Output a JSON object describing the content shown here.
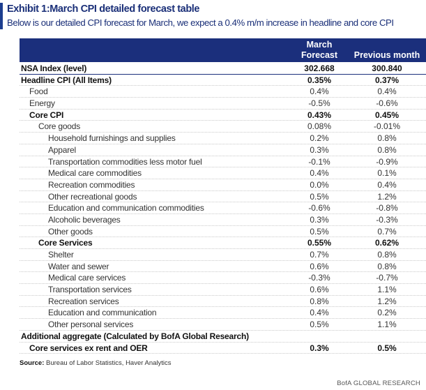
{
  "title": "Exhibit 1:March CPI detailed forecast table",
  "subtitle": "Below is our detailed CPI forecast for March, we expect a 0.4% m/m increase in headline and core CPI",
  "columns": {
    "march_line1": "March",
    "march_line2": "Forecast",
    "previous": "Previous month"
  },
  "rows": [
    {
      "label": "NSA Index (level)",
      "march": "302.668",
      "prev": "300.840",
      "level": 0,
      "bold": true
    },
    {
      "label": "Headline CPI (All Items)",
      "march": "0.35%",
      "prev": "0.37%",
      "level": 0,
      "bold": true
    },
    {
      "label": "Food",
      "march": "0.4%",
      "prev": "0.4%",
      "level": 1,
      "bold": false
    },
    {
      "label": "Energy",
      "march": "-0.5%",
      "prev": "-0.6%",
      "level": 1,
      "bold": false
    },
    {
      "label": "Core CPI",
      "march": "0.43%",
      "prev": "0.45%",
      "level": 1,
      "bold": true
    },
    {
      "label": "Core goods",
      "march": "0.08%",
      "prev": "-0.01%",
      "level": 2,
      "bold": false
    },
    {
      "label": "Household furnishings and supplies",
      "march": "0.2%",
      "prev": "0.8%",
      "level": 3,
      "bold": false
    },
    {
      "label": "Apparel",
      "march": "0.3%",
      "prev": "0.8%",
      "level": 3,
      "bold": false
    },
    {
      "label": "Transportation commodities less motor fuel",
      "march": "-0.1%",
      "prev": "-0.9%",
      "level": 3,
      "bold": false
    },
    {
      "label": "Medical care commodities",
      "march": "0.4%",
      "prev": "0.1%",
      "level": 3,
      "bold": false
    },
    {
      "label": "Recreation commodities",
      "march": "0.0%",
      "prev": "0.4%",
      "level": 3,
      "bold": false
    },
    {
      "label": "Other recreational goods",
      "march": "0.5%",
      "prev": "1.2%",
      "level": 3,
      "bold": false
    },
    {
      "label": "Education and communication commodities",
      "march": "-0.6%",
      "prev": "-0.8%",
      "level": 3,
      "bold": false
    },
    {
      "label": "Alcoholic beverages",
      "march": "0.3%",
      "prev": "-0.3%",
      "level": 3,
      "bold": false
    },
    {
      "label": "Other goods",
      "march": "0.5%",
      "prev": "0.7%",
      "level": 3,
      "bold": false
    },
    {
      "label": "Core Services",
      "march": "0.55%",
      "prev": "0.62%",
      "level": 2,
      "bold": true
    },
    {
      "label": "Shelter",
      "march": "0.7%",
      "prev": "0.8%",
      "level": 3,
      "bold": false
    },
    {
      "label": "Water and sewer",
      "march": "0.6%",
      "prev": "0.8%",
      "level": 3,
      "bold": false
    },
    {
      "label": "Medical care services",
      "march": "-0.3%",
      "prev": "-0.7%",
      "level": 3,
      "bold": false
    },
    {
      "label": "Transportation services",
      "march": "0.6%",
      "prev": "1.1%",
      "level": 3,
      "bold": false
    },
    {
      "label": "Recreation services",
      "march": "0.8%",
      "prev": "1.2%",
      "level": 3,
      "bold": false
    },
    {
      "label": "Education and communication",
      "march": "0.4%",
      "prev": "0.2%",
      "level": 3,
      "bold": false
    },
    {
      "label": "Other personal services",
      "march": "0.5%",
      "prev": "1.1%",
      "level": 3,
      "bold": false
    },
    {
      "label": "Additional aggregate (Calculated by BofA Global Research)",
      "march": "",
      "prev": "",
      "level": 0,
      "bold": true
    },
    {
      "label": "Core services ex rent and OER",
      "march": "0.3%",
      "prev": "0.5%",
      "level": 1,
      "bold": true
    }
  ],
  "source_label": "Source:",
  "source_text": "Bureau of Labor Statistics, Haver Analytics",
  "brand": "BofA GLOBAL RESEARCH"
}
